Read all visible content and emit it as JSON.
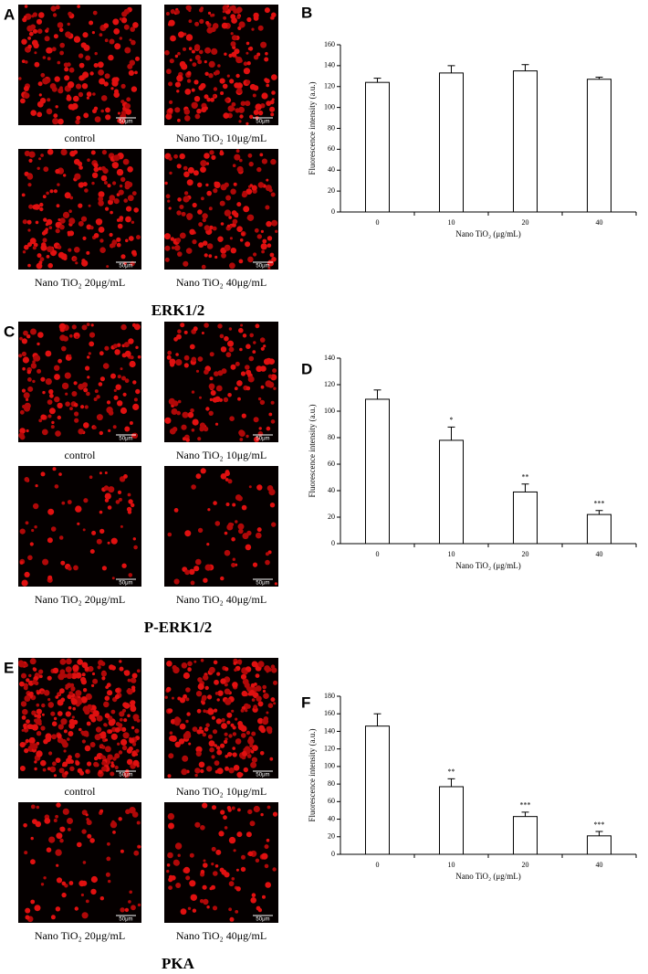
{
  "image_panels": [
    {
      "letter": "A",
      "caption": "ERK1/2",
      "images": [
        {
          "label": "control",
          "scale": "50μm"
        },
        {
          "label": "Nano TiO₂ 10μg/mL",
          "scale": "50μm"
        },
        {
          "label": "Nano TiO₂ 20μg/mL",
          "scale": "50μm"
        },
        {
          "label": "Nano TiO₂ 40μg/mL",
          "scale": "50μm"
        }
      ]
    },
    {
      "letter": "C",
      "caption": "P-ERK1/2",
      "images": [
        {
          "label": "control",
          "scale": "50μm"
        },
        {
          "label": "Nano TiO₂ 10μg/mL",
          "scale": "50μm"
        },
        {
          "label": "Nano TiO₂ 20μg/mL",
          "scale": "50μm"
        },
        {
          "label": "Nano TiO₂ 40μg/mL",
          "scale": "50μm"
        }
      ]
    },
    {
      "letter": "E",
      "caption": "PKA",
      "images": [
        {
          "label": "control",
          "scale": "50μm"
        },
        {
          "label": "Nano TiO₂ 10μg/mL",
          "scale": "50μm"
        },
        {
          "label": "Nano TiO₂ 20μg/mL",
          "scale": "50μm"
        },
        {
          "label": "Nano TiO₂ 40μg/mL",
          "scale": "50μm"
        }
      ]
    }
  ],
  "chart_data": [
    {
      "type": "bar",
      "panel": "B",
      "x_label": "Nano TiO₂ (μg/mL)",
      "y_label": "Fluorescence intensity (a.u.)",
      "categories": [
        "0",
        "10",
        "20",
        "40"
      ],
      "values": [
        124,
        133,
        135,
        127
      ],
      "errors": [
        4,
        7,
        6,
        2
      ],
      "color": "#ffffff",
      "ylim": [
        0,
        160
      ],
      "yticks": [
        0,
        20,
        40,
        60,
        80,
        100,
        120,
        140,
        160
      ]
    },
    {
      "type": "bar",
      "panel": "D",
      "x_label": "Nano TiO₂ (μg/mL)",
      "y_label": "Fluorescence intensity (a.u.)",
      "categories": [
        "0",
        "10",
        "20",
        "40"
      ],
      "values": [
        109,
        78,
        39,
        22
      ],
      "errors": [
        7,
        10,
        6,
        3
      ],
      "significance": [
        null,
        "*",
        "**",
        "***"
      ],
      "color": "#ffffff",
      "ylim": [
        0,
        140
      ],
      "yticks": [
        0,
        20,
        40,
        60,
        80,
        100,
        120,
        140
      ]
    },
    {
      "type": "bar",
      "panel": "F",
      "x_label": "Nano TiO₂ (μg/mL)",
      "y_label": "Fluorescence intensity (a.u.)",
      "categories": [
        "0",
        "10",
        "20",
        "40"
      ],
      "values": [
        146,
        77,
        43,
        21
      ],
      "errors": [
        14,
        9,
        5,
        5
      ],
      "significance": [
        null,
        "**",
        "***",
        "***"
      ],
      "color": "#ffffff",
      "ylim": [
        0,
        180
      ],
      "yticks": [
        0,
        20,
        40,
        60,
        80,
        100,
        120,
        140,
        160,
        180
      ]
    }
  ]
}
